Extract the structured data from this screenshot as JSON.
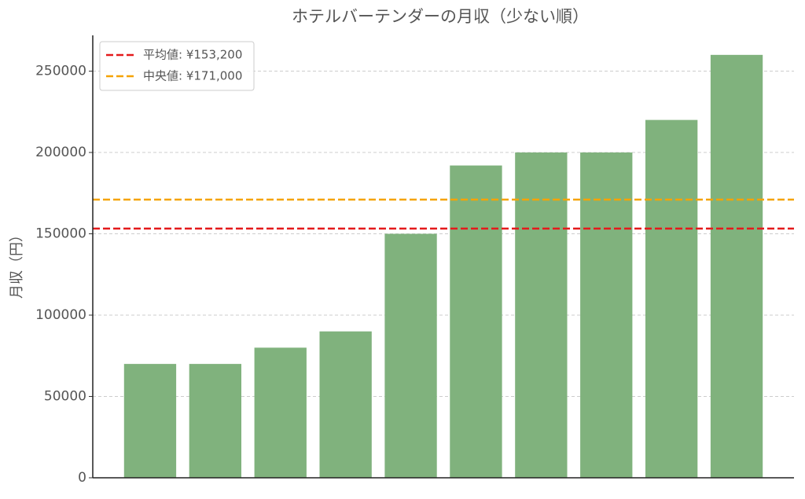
{
  "chart_data": {
    "type": "bar",
    "title": "ホテルバーテンダーの月収（少ない順）",
    "y_label": "月収（円）",
    "categories": [
      null,
      null,
      null,
      null,
      null,
      null,
      null,
      null,
      null,
      null
    ],
    "values": [
      70000,
      70000,
      80000,
      90000,
      150000,
      192000,
      200000,
      200000,
      220000,
      260000
    ],
    "color": "#80b27d",
    "ylim": [
      0,
      272000
    ],
    "yticks": [
      0,
      50000,
      100000,
      150000,
      200000,
      250000
    ],
    "grid": true,
    "legend": "upper left",
    "reference_lines": [
      {
        "name": "平均値: ¥153,200",
        "value": 153200,
        "color": "#e41a1c"
      },
      {
        "name": "中央値: ¥171,000",
        "value": 171000,
        "color": "#f5a300"
      }
    ]
  }
}
